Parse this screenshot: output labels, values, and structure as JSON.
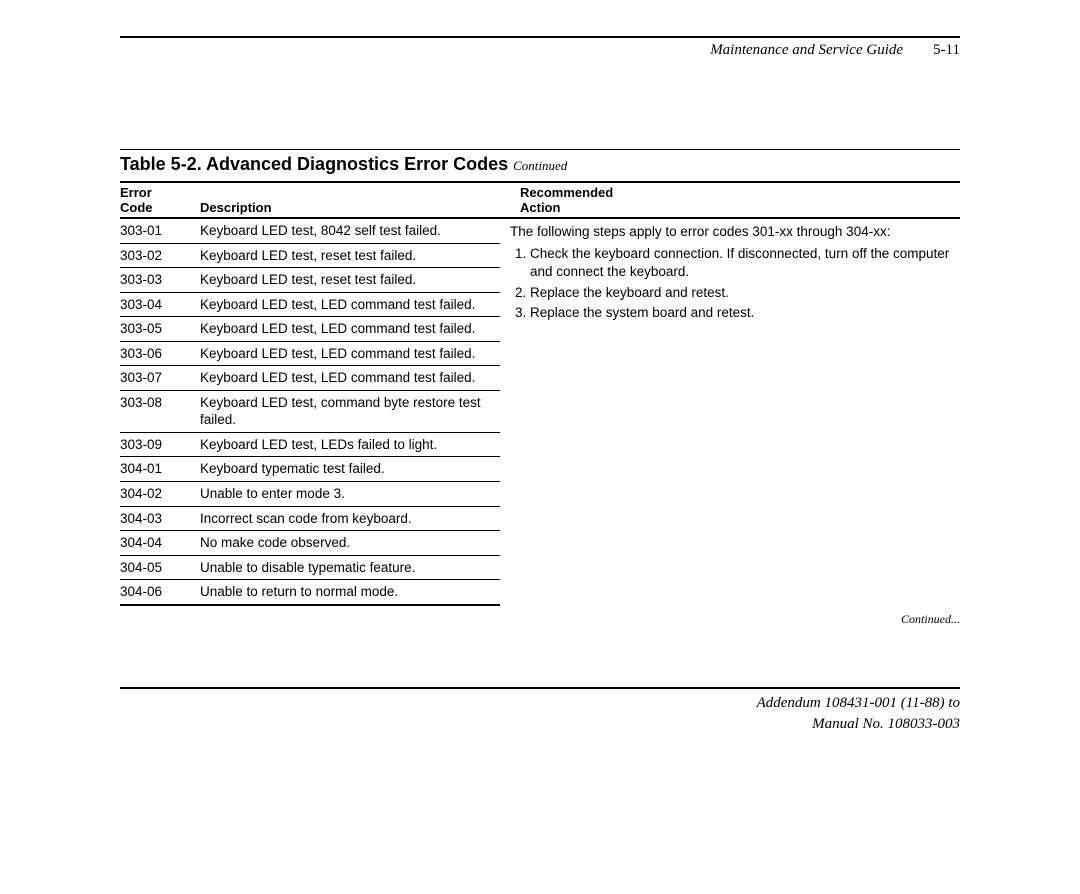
{
  "header": {
    "title": "Maintenance and Service Guide",
    "page_number": "5-11"
  },
  "table": {
    "title_prefix": "Table 5-2. Advanced Diagnostics Error Codes",
    "title_suffix": "Continued",
    "columns": {
      "code_line1": "Error",
      "code_line2": "Code",
      "desc": "Description",
      "action_line1": "Recommended",
      "action_line2": "Action"
    },
    "rows": [
      {
        "code": "303-01",
        "desc": "Keyboard LED test, 8042 self test failed."
      },
      {
        "code": "303-02",
        "desc": "Keyboard LED test, reset test failed."
      },
      {
        "code": "303-03",
        "desc": "Keyboard LED test, reset test failed."
      },
      {
        "code": "303-04",
        "desc": "Keyboard LED test, LED command test failed."
      },
      {
        "code": "303-05",
        "desc": "Keyboard LED test, LED command test failed."
      },
      {
        "code": "303-06",
        "desc": "Keyboard LED test, LED command test failed."
      },
      {
        "code": "303-07",
        "desc": "Keyboard LED test, LED command test failed."
      },
      {
        "code": "303-08",
        "desc": "Keyboard LED test, command byte restore test failed."
      },
      {
        "code": "303-09",
        "desc": "Keyboard LED test, LEDs failed to light."
      },
      {
        "code": "304-01",
        "desc": "Keyboard typematic test failed."
      },
      {
        "code": "304-02",
        "desc": "Unable to enter mode 3."
      },
      {
        "code": "304-03",
        "desc": "Incorrect scan code from keyboard."
      },
      {
        "code": "304-04",
        "desc": "No make code observed."
      },
      {
        "code": "304-05",
        "desc": "Unable to disable typematic feature."
      },
      {
        "code": "304-06",
        "desc": "Unable to return to normal mode."
      }
    ],
    "action_intro": "The following steps apply to error codes 301-xx through 304-xx:",
    "action_steps": [
      "Check the keyboard connection. If disconnected, turn off the computer and connect the keyboard.",
      "Replace the keyboard and retest.",
      "Replace the system board and retest."
    ],
    "continued_note": "Continued..."
  },
  "footer": {
    "line1": "Addendum 108431-001 (11-88) to",
    "line2": "Manual No. 108033-003"
  }
}
